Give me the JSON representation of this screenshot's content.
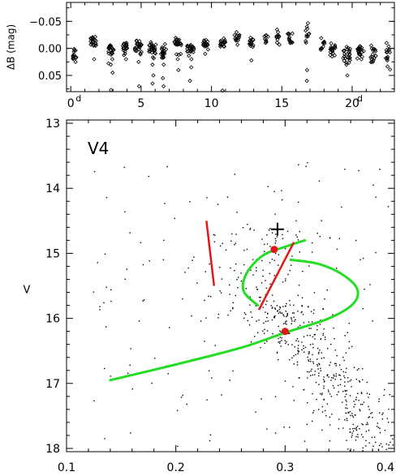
{
  "chart_data": [
    {
      "type": "scatter",
      "panel": "top",
      "ylabel": "ΔB (mag)",
      "xlim": [
        -0.3,
        23
      ],
      "ylim": [
        0.08,
        -0.085
      ],
      "y_inverted": true,
      "x_ticks": [
        0,
        5,
        10,
        15,
        20
      ],
      "x_tick_labels": [
        "0",
        "5",
        "10",
        "15",
        "20"
      ],
      "x_tick_superscripts": [
        {
          "x": 0,
          "text": "d"
        },
        {
          "x": 20,
          "text": "d"
        }
      ],
      "y_ticks": [
        -0.05,
        0.0,
        0.05
      ],
      "y_tick_labels": [
        "−0.05",
        "0.00",
        "0.05"
      ],
      "marker": "open-diamond",
      "nights": [
        {
          "x": 0.3,
          "w": 0.3,
          "y": 0.012,
          "s": 0.006,
          "n": 14,
          "out": [
            0.025
          ]
        },
        {
          "x": 1.6,
          "w": 0.4,
          "y": -0.012,
          "s": 0.006,
          "n": 18,
          "out": [
            -0.005,
            0.02
          ]
        },
        {
          "x": 2.9,
          "w": 0.5,
          "y": 0.003,
          "s": 0.007,
          "n": 22,
          "out": [
            0.03,
            0.045,
            0.02,
            0.077
          ]
        },
        {
          "x": 3.9,
          "w": 0.4,
          "y": -0.004,
          "s": 0.006,
          "n": 18,
          "out": [
            0.01,
            0.02
          ]
        },
        {
          "x": 4.8,
          "w": 0.5,
          "y": -0.004,
          "s": 0.007,
          "n": 24,
          "out": [
            0.025,
            0.07,
            0.08
          ]
        },
        {
          "x": 5.8,
          "w": 0.5,
          "y": 0.001,
          "s": 0.008,
          "n": 24,
          "out": [
            0.03,
            0.05,
            0.065,
            0.08
          ]
        },
        {
          "x": 6.6,
          "w": 0.4,
          "y": 0.007,
          "s": 0.007,
          "n": 20,
          "out": [
            0.03,
            0.055,
            0.07
          ]
        },
        {
          "x": 7.6,
          "w": 0.5,
          "y": -0.008,
          "s": 0.008,
          "n": 22,
          "out": [
            0.02,
            0.04
          ]
        },
        {
          "x": 8.5,
          "w": 0.5,
          "y": -0.001,
          "s": 0.008,
          "n": 22,
          "out": [
            0.02,
            0.035,
            0.06
          ]
        },
        {
          "x": 9.6,
          "w": 0.4,
          "y": -0.007,
          "s": 0.006,
          "n": 18,
          "out": [
            0.01
          ]
        },
        {
          "x": 10.8,
          "w": 0.4,
          "y": -0.01,
          "s": 0.006,
          "n": 16,
          "out": [
            0.078
          ]
        },
        {
          "x": 11.8,
          "w": 0.4,
          "y": -0.018,
          "s": 0.006,
          "n": 12,
          "out": [
            -0.03
          ]
        },
        {
          "x": 12.8,
          "w": 0.4,
          "y": -0.01,
          "s": 0.006,
          "n": 14,
          "out": [
            0.022
          ]
        },
        {
          "x": 13.9,
          "w": 0.3,
          "y": -0.02,
          "s": 0.005,
          "n": 8,
          "out": [
            -0.01
          ]
        },
        {
          "x": 14.7,
          "w": 0.3,
          "y": -0.02,
          "s": 0.006,
          "n": 10,
          "out": [
            -0.03
          ]
        },
        {
          "x": 15.6,
          "w": 0.4,
          "y": -0.02,
          "s": 0.006,
          "n": 12,
          "out": [
            -0.01
          ]
        },
        {
          "x": 16.8,
          "w": 0.3,
          "y": -0.025,
          "s": 0.008,
          "n": 10,
          "out": [
            -0.04,
            0.04,
            0.06
          ]
        },
        {
          "x": 17.9,
          "w": 0.3,
          "y": -0.008,
          "s": 0.006,
          "n": 10,
          "out": [
            0.0
          ]
        },
        {
          "x": 18.6,
          "w": 0.4,
          "y": 0.004,
          "s": 0.007,
          "n": 18,
          "out": [
            0.015
          ]
        },
        {
          "x": 19.6,
          "w": 0.5,
          "y": 0.013,
          "s": 0.008,
          "n": 22,
          "out": [
            0.03,
            0.05
          ]
        },
        {
          "x": 20.6,
          "w": 0.5,
          "y": 0.006,
          "s": 0.007,
          "n": 20,
          "out": [
            0.02
          ]
        },
        {
          "x": 21.5,
          "w": 0.4,
          "y": 0.008,
          "s": 0.008,
          "n": 18,
          "out": [
            0.025
          ]
        },
        {
          "x": 22.5,
          "w": 0.4,
          "y": 0.013,
          "s": 0.007,
          "n": 14,
          "out": [
            -0.01
          ]
        }
      ]
    },
    {
      "type": "scatter",
      "panel": "bottom",
      "annotation": "V4",
      "ylabel": "V",
      "xlim": [
        0.1,
        0.4
      ],
      "ylim": [
        18.05,
        12.95
      ],
      "y_inverted": true,
      "x_ticks": [
        0.1,
        0.2,
        0.3,
        0.4
      ],
      "x_tick_labels": [
        "0.1",
        "0.2",
        "0.3",
        "0.4"
      ],
      "y_ticks": [
        13,
        14,
        15,
        16,
        17,
        18
      ],
      "y_tick_labels": [
        "13",
        "14",
        "15",
        "16",
        "17",
        "18"
      ],
      "field_stars": {
        "n": 700,
        "seed": 7
      },
      "green_curve": [
        [
          0.14,
          16.95
        ],
        [
          0.2,
          16.71
        ],
        [
          0.26,
          16.45
        ],
        [
          0.3,
          16.22
        ],
        [
          0.34,
          16.0
        ],
        [
          0.362,
          15.78
        ],
        [
          0.366,
          15.55
        ],
        [
          0.352,
          15.32
        ],
        [
          0.33,
          15.16
        ],
        [
          0.305,
          15.1
        ]
      ],
      "green_curve_2": [
        [
          0.275,
          15.8
        ],
        [
          0.262,
          15.58
        ],
        [
          0.265,
          15.3
        ],
        [
          0.28,
          15.03
        ],
        [
          0.3,
          14.9
        ],
        [
          0.318,
          14.8
        ]
      ],
      "red_lines": [
        {
          "x1": 0.228,
          "y1": 14.5,
          "x2": 0.235,
          "y2": 15.5
        },
        {
          "x1": 0.276,
          "y1": 15.87,
          "x2": 0.308,
          "y2": 14.83
        }
      ],
      "red_points": [
        {
          "x": 0.29,
          "y": 14.94
        },
        {
          "x": 0.3,
          "y": 16.2
        }
      ],
      "cross": {
        "x": 0.293,
        "y": 14.63
      }
    }
  ]
}
